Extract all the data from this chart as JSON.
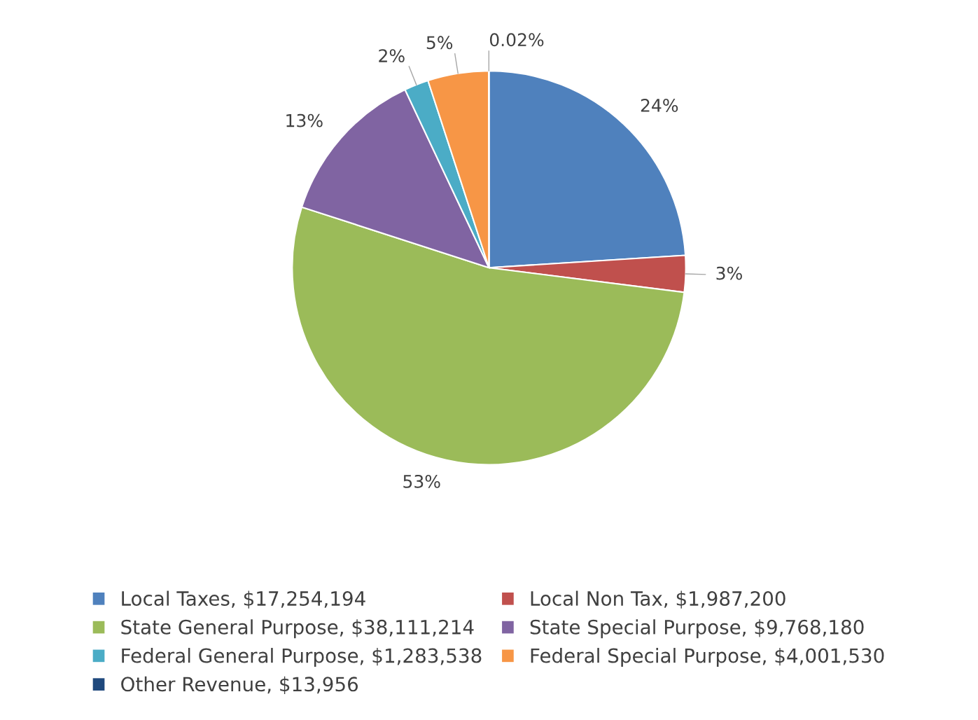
{
  "chart_data": {
    "type": "pie",
    "categories": [
      "Local Taxes, $17,254,194",
      "Local Non Tax, $1,987,200",
      "State General Purpose, $38,111,214",
      "State Special Purpose, $9,768,180",
      "Federal General Purpose, $1,283,538",
      "Federal Special Purpose, $4,001,530",
      "Other Revenue, $13,956"
    ],
    "values": [
      24,
      3,
      53,
      13,
      2,
      5,
      0.02
    ],
    "colors": [
      "#4f81bd",
      "#c0504d",
      "#9bbb59",
      "#8064a2",
      "#4bacc6",
      "#f79646",
      "#1f497d"
    ],
    "value_labels": [
      "24%",
      "3%",
      "53%",
      "13%",
      "2%",
      "5%",
      "0.02%"
    ],
    "legend": "bottom"
  }
}
